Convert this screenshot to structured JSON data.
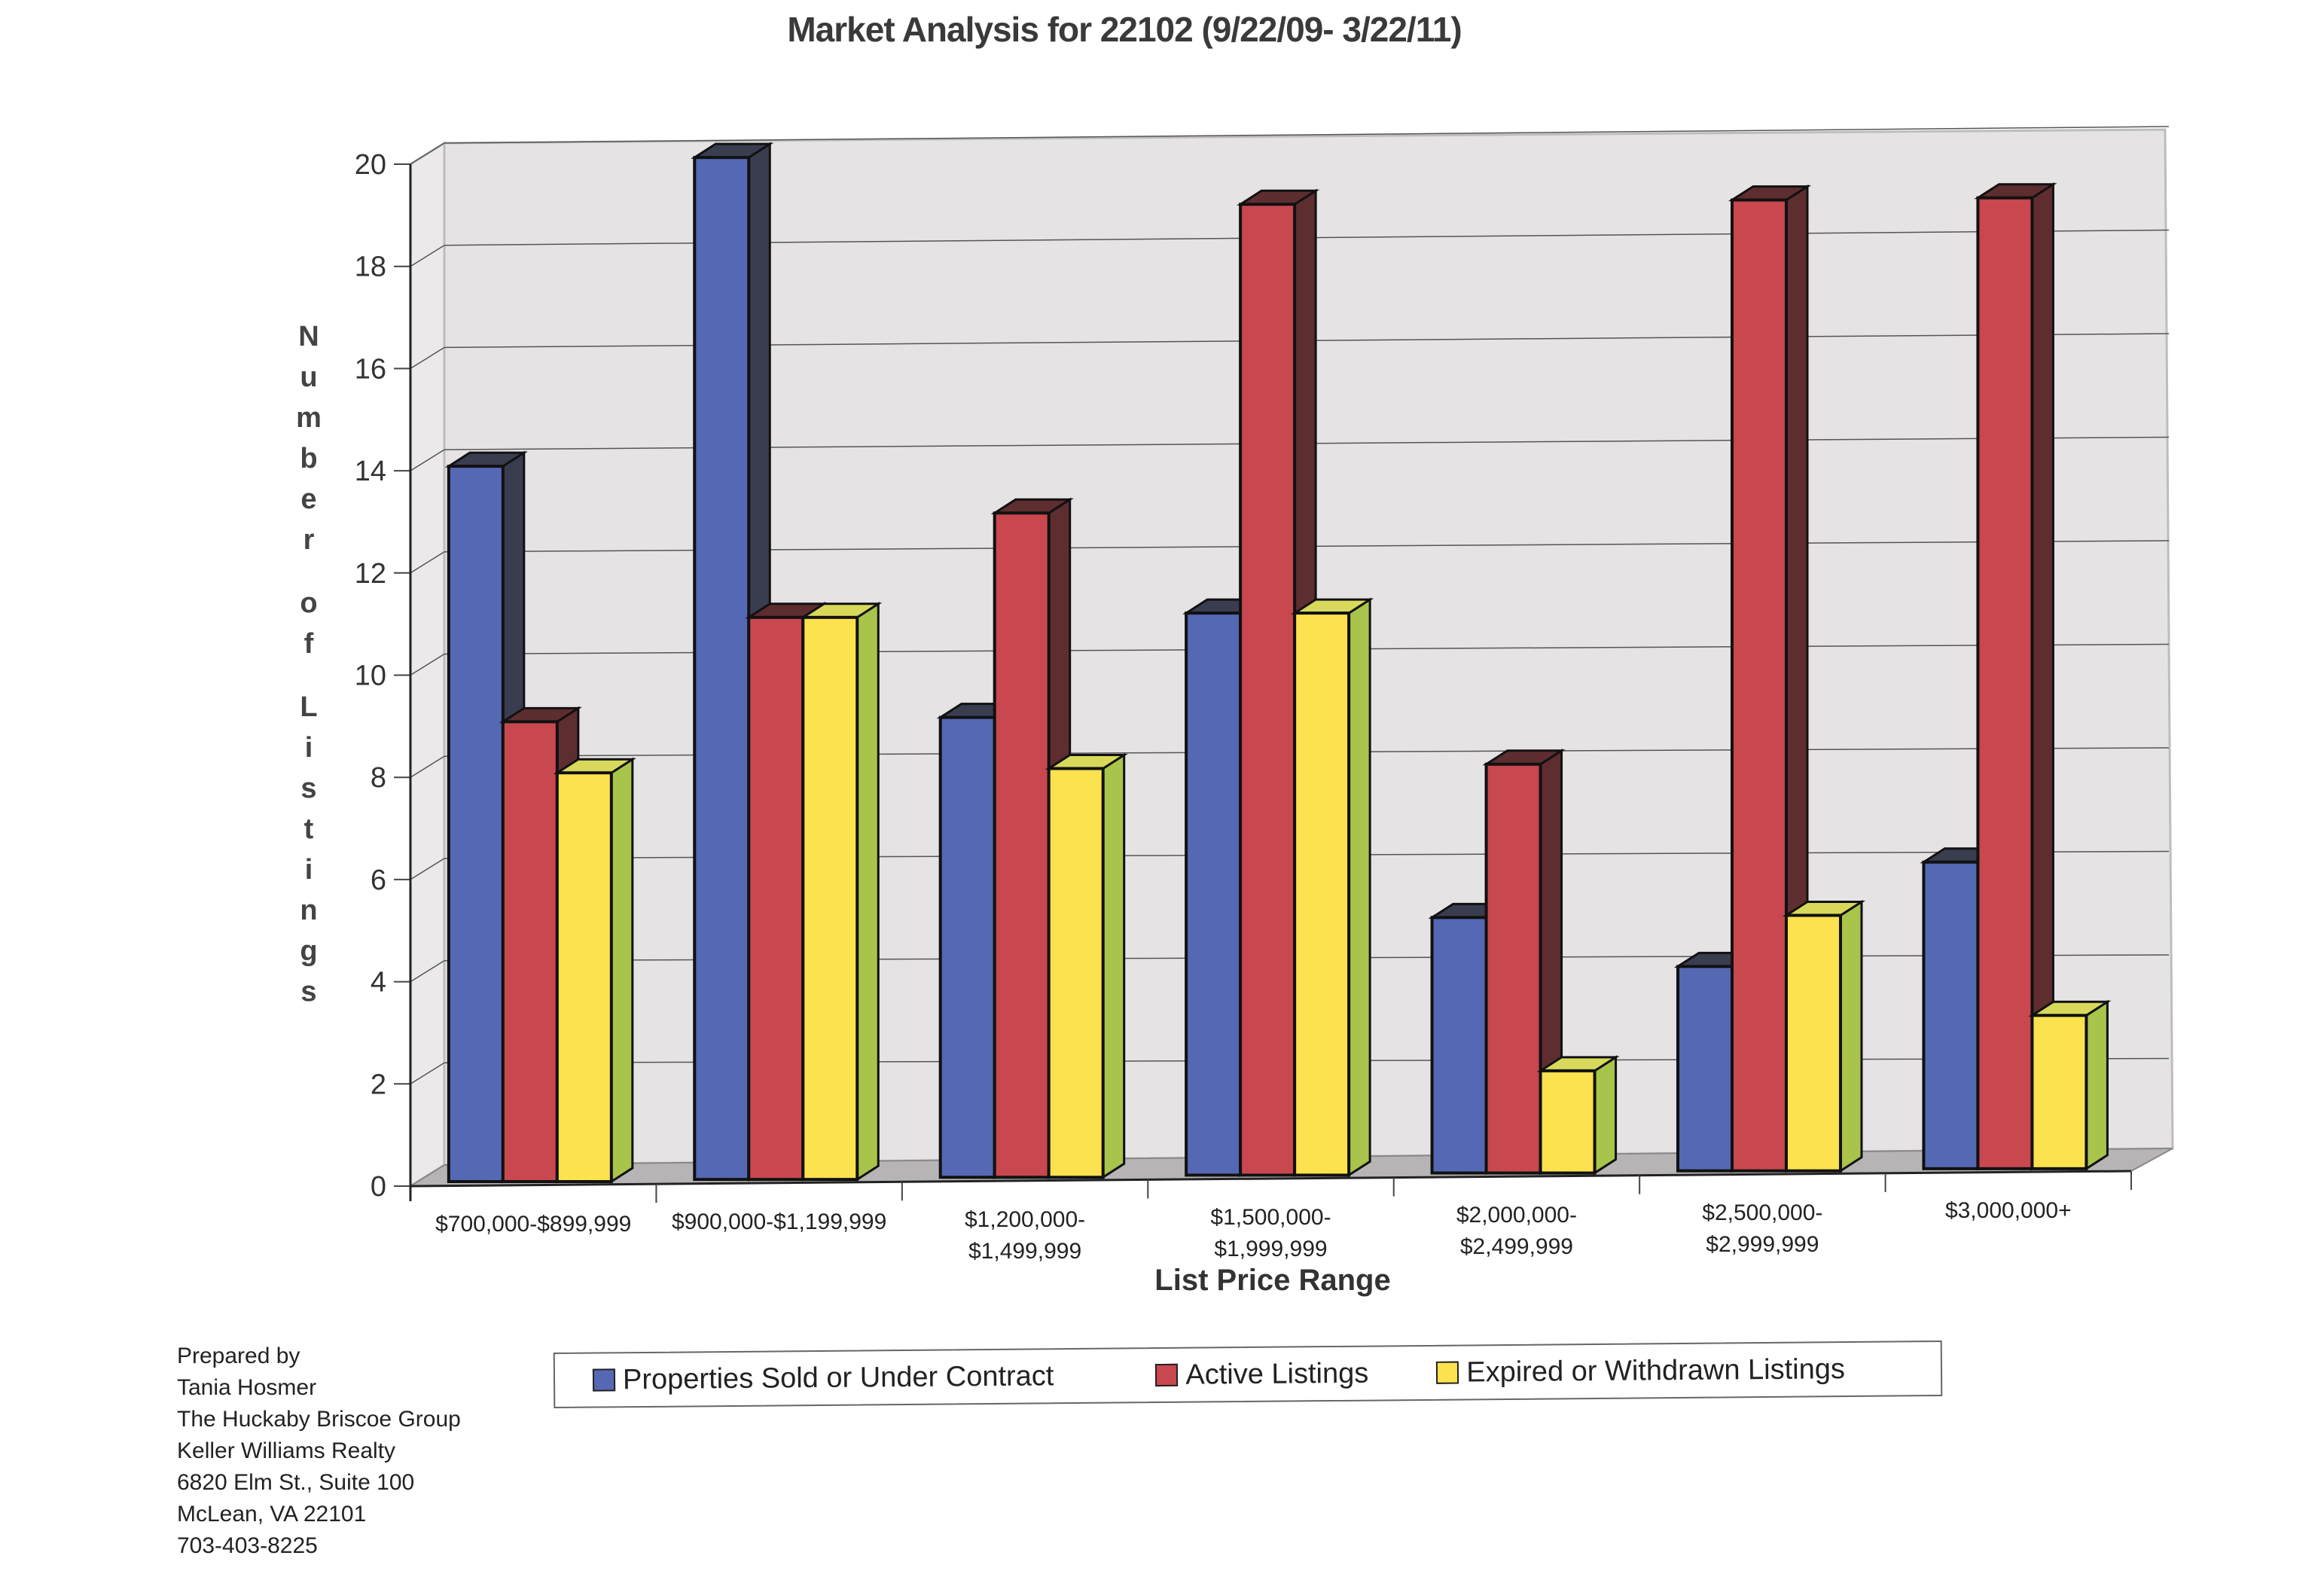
{
  "chart_data": {
    "type": "bar",
    "style": "3d-clustered",
    "title": "Market Analysis for 22102 (9/22/09- 3/22/11)",
    "xlabel": "List Price Range",
    "ylabel": "Number of Listings",
    "ylim": [
      0,
      20
    ],
    "yticks": [
      "0",
      "2",
      "4",
      "6",
      "8",
      "10",
      "12",
      "14",
      "16",
      "18",
      "20"
    ],
    "grid": true,
    "legend_position": "bottom",
    "categories": [
      [
        "$700,000-$899,999"
      ],
      [
        "$900,000-$1,199,999"
      ],
      [
        "$1,200,000-",
        "$1,499,999"
      ],
      [
        "$1,500,000-",
        "$1,999,999"
      ],
      [
        "$2,000,000-",
        "$2,499,999"
      ],
      [
        "$2,500,000-",
        "$2,999,999"
      ],
      [
        "$3,000,000+"
      ]
    ],
    "series": [
      {
        "name": "Properties Sold or Under Contract",
        "color": "#5468b4",
        "side": "#3a3d4f",
        "values": [
          14,
          20,
          9,
          11,
          5,
          4,
          6
        ]
      },
      {
        "name": "Active Listings",
        "color": "#c9474f",
        "side": "#5e2d30",
        "values": [
          9,
          11,
          13,
          19,
          8,
          19,
          19
        ]
      },
      {
        "name": "Expired or Withdrawn Listings",
        "color": "#fbe24e",
        "side": "#a9c44a",
        "values": [
          8,
          11,
          8,
          11,
          2,
          5,
          3
        ]
      }
    ]
  },
  "prepared_by": [
    "Prepared by",
    "Tania Hosmer",
    "The Huckaby Briscoe Group",
    "Keller Williams Realty",
    "6820 Elm St., Suite 100",
    "McLean, VA 22101",
    "703-403-8225"
  ]
}
